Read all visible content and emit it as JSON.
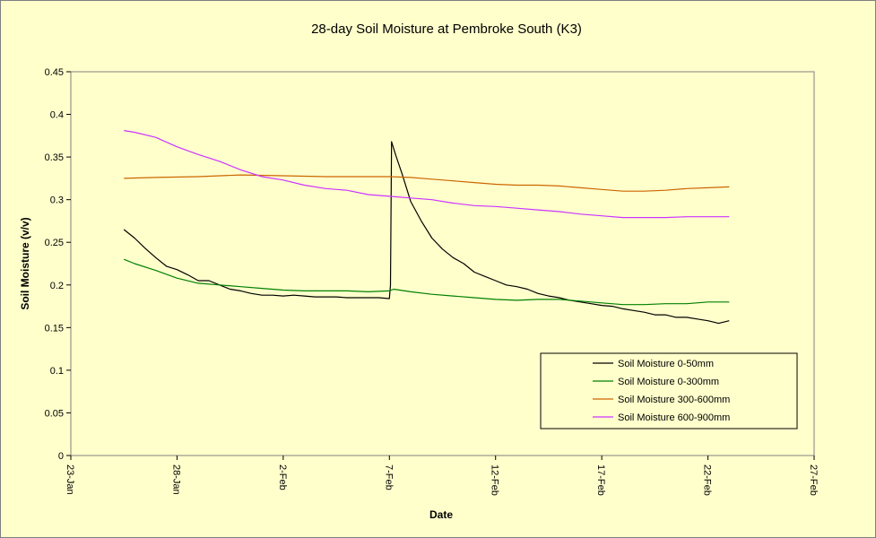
{
  "chart_data": {
    "type": "line",
    "title": "28-day Soil Moisture  at Pembroke South (K3)",
    "xlabel": "Date",
    "ylabel": "Soil Moisture (v/v)",
    "x_ticks": [
      "23-Jan",
      "28-Jan",
      "2-Feb",
      "7-Feb",
      "12-Feb",
      "17-Feb",
      "22-Feb",
      "27-Feb"
    ],
    "xlim_days": [
      0,
      35
    ],
    "ylim": [
      0,
      0.45
    ],
    "y_ticks": [
      "0",
      "0.05",
      "0.1",
      "0.15",
      "0.2",
      "0.25",
      "0.3",
      "0.35",
      "0.4",
      "0.45"
    ],
    "grid": false,
    "legend_position": "bottom-right",
    "colors": {
      "background": "#ffffcc",
      "plot_border": "#808080"
    },
    "series": [
      {
        "name": "Soil Moisture 0-50mm",
        "color": "#000000",
        "x": [
          2.5,
          3,
          3.5,
          4,
          4.5,
          5,
          5.5,
          6,
          6.5,
          7,
          7.5,
          8,
          8.5,
          9,
          9.5,
          10,
          10.5,
          11,
          11.5,
          12,
          12.5,
          13,
          13.5,
          14,
          14.5,
          15,
          15.05,
          15.1,
          15.3,
          15.6,
          16,
          16.5,
          17,
          17.5,
          18,
          18.5,
          19,
          19.5,
          20,
          20.5,
          21,
          21.5,
          22,
          22.5,
          23,
          23.5,
          24,
          24.5,
          25,
          25.5,
          26,
          26.5,
          27,
          27.5,
          28,
          28.5,
          29,
          29.5,
          30,
          30.5,
          31
        ],
        "values": [
          0.265,
          0.255,
          0.243,
          0.232,
          0.222,
          0.218,
          0.212,
          0.205,
          0.205,
          0.2,
          0.195,
          0.193,
          0.19,
          0.188,
          0.188,
          0.187,
          0.188,
          0.187,
          0.186,
          0.186,
          0.186,
          0.185,
          0.185,
          0.185,
          0.185,
          0.184,
          0.2,
          0.368,
          0.352,
          0.33,
          0.298,
          0.275,
          0.255,
          0.242,
          0.232,
          0.225,
          0.215,
          0.21,
          0.205,
          0.2,
          0.198,
          0.195,
          0.19,
          0.187,
          0.185,
          0.182,
          0.18,
          0.178,
          0.176,
          0.175,
          0.172,
          0.17,
          0.168,
          0.165,
          0.165,
          0.162,
          0.162,
          0.16,
          0.158,
          0.155,
          0.158
        ]
      },
      {
        "name": "Soil Moisture 0-300mm",
        "color": "#008000",
        "x": [
          2.5,
          3,
          4,
          5,
          6,
          7,
          8,
          9,
          10,
          11,
          12,
          13,
          14,
          15,
          15.2,
          16,
          17,
          18,
          19,
          20,
          21,
          22,
          23,
          24,
          25,
          26,
          27,
          28,
          29,
          30,
          31
        ],
        "values": [
          0.23,
          0.225,
          0.217,
          0.208,
          0.202,
          0.2,
          0.198,
          0.196,
          0.194,
          0.193,
          0.193,
          0.193,
          0.192,
          0.193,
          0.195,
          0.192,
          0.189,
          0.187,
          0.185,
          0.183,
          0.182,
          0.183,
          0.183,
          0.181,
          0.179,
          0.177,
          0.177,
          0.178,
          0.178,
          0.18,
          0.18
        ]
      },
      {
        "name": "Soil Moisture 300-600mm",
        "color": "#cc6600",
        "x": [
          2.5,
          4,
          6,
          8,
          10,
          12,
          14,
          15,
          16,
          17,
          18,
          19,
          20,
          21,
          22,
          23,
          24,
          25,
          26,
          27,
          28,
          29,
          30,
          31
        ],
        "values": [
          0.325,
          0.326,
          0.327,
          0.329,
          0.328,
          0.327,
          0.327,
          0.327,
          0.326,
          0.324,
          0.322,
          0.32,
          0.318,
          0.317,
          0.317,
          0.316,
          0.314,
          0.312,
          0.31,
          0.31,
          0.311,
          0.313,
          0.314,
          0.315
        ]
      },
      {
        "name": "Soil Moisture 600-900mm",
        "color": "#cc33ff",
        "x": [
          2.5,
          3,
          4,
          5,
          6,
          7,
          8,
          9,
          10,
          11,
          12,
          13,
          14,
          15,
          16,
          17,
          18,
          19,
          20,
          21,
          22,
          23,
          24,
          25,
          26,
          27,
          28,
          29,
          30,
          31
        ],
        "values": [
          0.381,
          0.379,
          0.373,
          0.362,
          0.353,
          0.345,
          0.335,
          0.327,
          0.323,
          0.317,
          0.313,
          0.311,
          0.306,
          0.304,
          0.302,
          0.3,
          0.296,
          0.293,
          0.292,
          0.29,
          0.288,
          0.286,
          0.283,
          0.281,
          0.279,
          0.279,
          0.279,
          0.28,
          0.28,
          0.28
        ]
      }
    ]
  }
}
